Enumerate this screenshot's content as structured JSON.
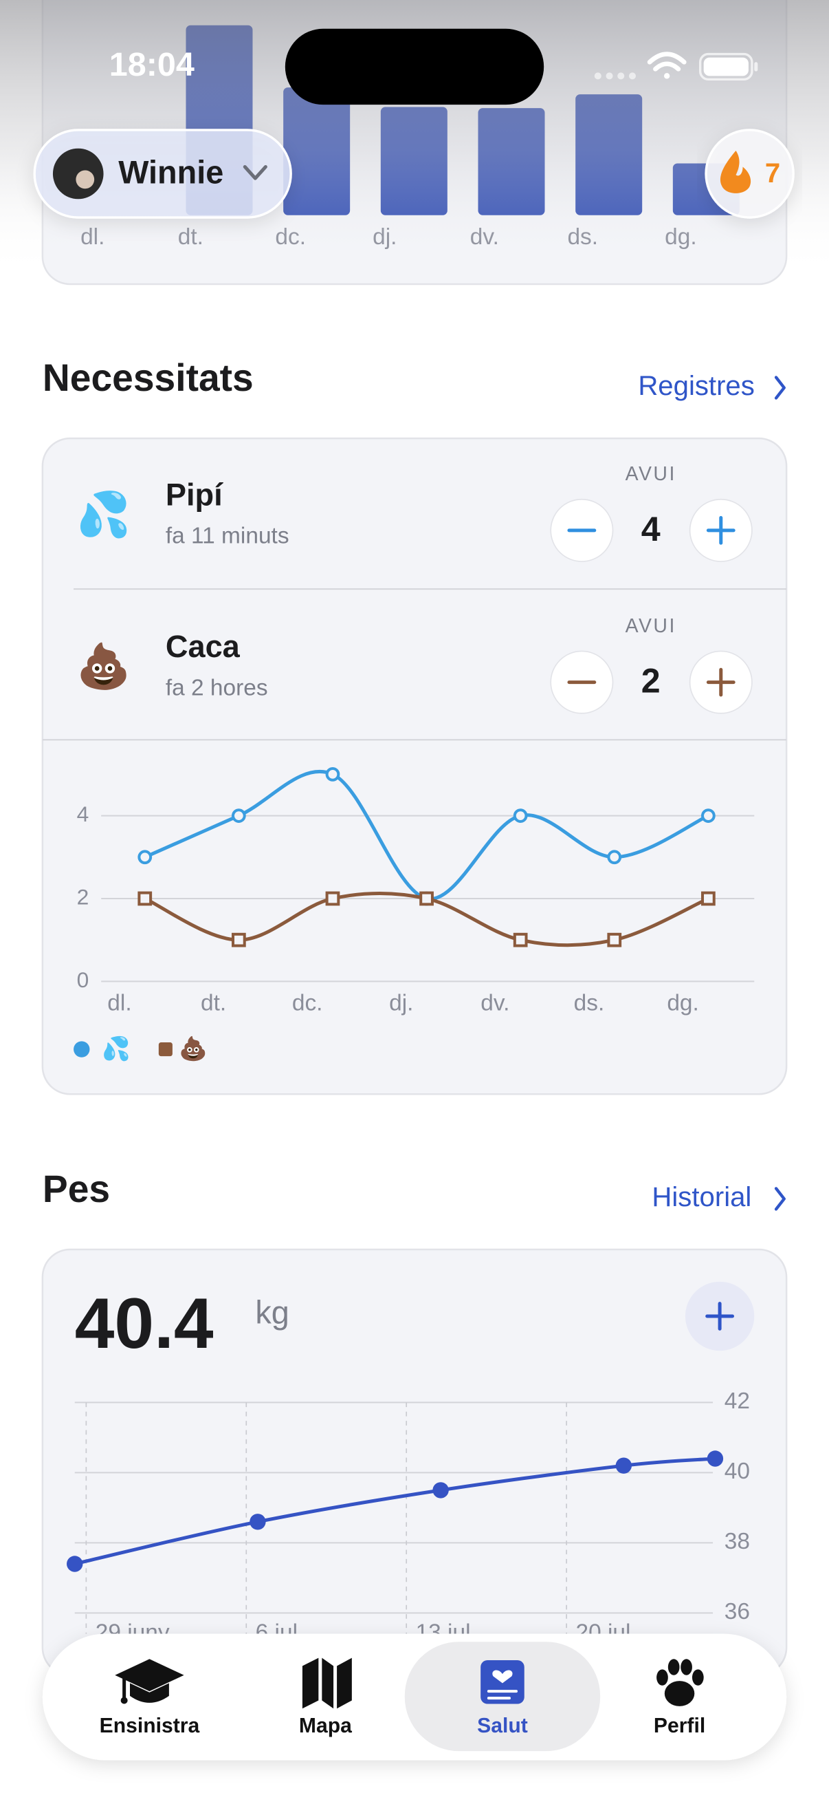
{
  "status_bar": {
    "time": "18:04"
  },
  "header": {
    "pet_name": "Winnie",
    "streak": 7
  },
  "needs": {
    "title": "Necessitats",
    "link": "Registres",
    "items": [
      {
        "icon": "💦",
        "name": "Pipí",
        "last": "fa 11 minuts",
        "period": "AVUI",
        "count": 4,
        "color": "#2f8fe0"
      },
      {
        "icon": "💩",
        "name": "Caca",
        "last": "fa 2 hores",
        "period": "AVUI",
        "count": 2,
        "color": "#8b5a3c"
      }
    ]
  },
  "weight": {
    "title": "Pes",
    "link": "Historial",
    "value": 40.4,
    "unit": "kg"
  },
  "nav": {
    "items": [
      "Ensinistra",
      "Mapa",
      "Salut",
      "Perfil"
    ],
    "active": 2
  },
  "chart_data": [
    {
      "type": "bar",
      "categories": [
        "dl.",
        "dt.",
        "dc.",
        "dj.",
        "dv.",
        "ds.",
        "dg."
      ],
      "values": [
        0,
        165,
        111,
        94,
        93,
        105,
        45
      ],
      "color": "#2f4cb3",
      "ylim": [
        0,
        180
      ]
    },
    {
      "type": "line",
      "categories": [
        "dl.",
        "dt.",
        "dc.",
        "dj.",
        "dv.",
        "ds.",
        "dg."
      ],
      "series": [
        {
          "name": "💦",
          "color": "#3a9de0",
          "marker": "circle",
          "values": [
            3,
            4,
            5,
            2,
            4,
            3,
            4
          ]
        },
        {
          "name": "💩",
          "color": "#8b5a3c",
          "marker": "square",
          "values": [
            2,
            1,
            2,
            2,
            1,
            1,
            2
          ]
        }
      ],
      "ylim": [
        0,
        5
      ],
      "yticks": [
        0,
        2,
        4
      ],
      "grid": true,
      "smooth": true
    },
    {
      "type": "line",
      "x": [
        -0.5,
        7.5,
        15.5,
        23.5,
        27.5
      ],
      "values": [
        37.4,
        38.6,
        39.5,
        40.2,
        40.4
      ],
      "color": "#3553c4",
      "xlim": [
        -0.5,
        27.5
      ],
      "xticks": [
        {
          "value": 0,
          "label": "29 juny"
        },
        {
          "value": 7,
          "label": "6 jul."
        },
        {
          "value": 14,
          "label": "13 jul."
        },
        {
          "value": 21,
          "label": "20 jul."
        }
      ],
      "ylim": [
        36,
        42
      ],
      "yticks": [
        36,
        38,
        40,
        42
      ],
      "grid": true,
      "smooth": true
    }
  ]
}
